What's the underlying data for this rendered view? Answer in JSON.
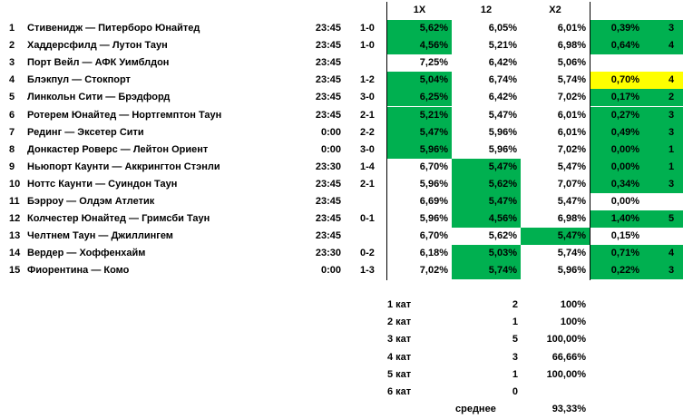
{
  "headers": {
    "h1x": "1X",
    "h12": "12",
    "hx2": "X2"
  },
  "colors": {
    "green": "#00b050",
    "yellow": "#ffff00"
  },
  "rows": [
    {
      "n": "1",
      "match": "Стивенидж — Питерборо Юнайтед",
      "time": "23:45",
      "score": "1-0",
      "c1x": "5,62%",
      "c12": "6,05%",
      "cx2": "6,01%",
      "pct": "0,39%",
      "cat": "3",
      "hl": "1x",
      "pctColor": "green"
    },
    {
      "n": "2",
      "match": "Хаддерсфилд — Лутон Таун",
      "time": "23:45",
      "score": "1-0",
      "c1x": "4,56%",
      "c12": "5,21%",
      "cx2": "6,98%",
      "pct": "0,64%",
      "cat": "4",
      "hl": "1x",
      "pctColor": "green"
    },
    {
      "n": "3",
      "match": "Порт Вейл — АФК Уимблдон",
      "time": "23:45",
      "score": "",
      "c1x": "7,25%",
      "c12": "6,42%",
      "cx2": "5,06%",
      "pct": "",
      "cat": "",
      "hl": "",
      "pctColor": ""
    },
    {
      "n": "4",
      "match": "Блэкпул — Стокпорт",
      "time": "23:45",
      "score": "1-2",
      "c1x": "5,04%",
      "c12": "6,74%",
      "cx2": "5,74%",
      "pct": "0,70%",
      "cat": "4",
      "hl": "1x",
      "pctColor": "yellow"
    },
    {
      "n": "5",
      "match": "Линкольн Сити — Брэдфорд",
      "time": "23:45",
      "score": "3-0",
      "c1x": "6,25%",
      "c12": "6,42%",
      "cx2": "7,02%",
      "pct": "0,17%",
      "cat": "2",
      "hl": "1x",
      "pctColor": "green"
    },
    {
      "n": "6",
      "match": "Ротерем Юнайтед — Нортгемптон Таун",
      "time": "23:45",
      "score": "2-1",
      "c1x": "5,21%",
      "c12": "5,47%",
      "cx2": "6,01%",
      "pct": "0,27%",
      "cat": "3",
      "hl": "1x",
      "pctColor": "green"
    },
    {
      "n": "7",
      "match": "Рединг — Эксетер Сити",
      "time": "0:00",
      "score": "2-2",
      "c1x": "5,47%",
      "c12": "5,96%",
      "cx2": "6,01%",
      "pct": "0,49%",
      "cat": "3",
      "hl": "1x",
      "pctColor": "green"
    },
    {
      "n": "8",
      "match": "Донкастер Роверс — Лейтон Ориент",
      "time": "0:00",
      "score": "3-0",
      "c1x": "5,96%",
      "c12": "5,96%",
      "cx2": "7,02%",
      "pct": "0,00%",
      "cat": "1",
      "hl": "1x",
      "pctColor": "green"
    },
    {
      "n": "9",
      "match": "Ньюпорт Каунти — Аккрингтон Стэнли",
      "time": "23:30",
      "score": "1-4",
      "c1x": "6,70%",
      "c12": "5,47%",
      "cx2": "5,47%",
      "pct": "0,00%",
      "cat": "1",
      "hl": "12",
      "pctColor": "green"
    },
    {
      "n": "10",
      "match": "Ноттс Каунти — Суиндон Таун",
      "time": "23:45",
      "score": "2-1",
      "c1x": "5,96%",
      "c12": "5,62%",
      "cx2": "7,07%",
      "pct": "0,34%",
      "cat": "3",
      "hl": "12",
      "pctColor": "green"
    },
    {
      "n": "11",
      "match": "Бэрроу — Олдэм Атлетик",
      "time": "23:45",
      "score": "",
      "c1x": "6,69%",
      "c12": "5,47%",
      "cx2": "5,47%",
      "pct": "0,00%",
      "cat": "",
      "hl": "12",
      "pctColor": ""
    },
    {
      "n": "12",
      "match": "Колчестер Юнайтед — Гримсби Таун",
      "time": "23:45",
      "score": "0-1",
      "c1x": "5,96%",
      "c12": "4,56%",
      "cx2": "6,98%",
      "pct": "1,40%",
      "cat": "5",
      "hl": "12",
      "pctColor": "green"
    },
    {
      "n": "13",
      "match": "Челтнем Таун — Джиллингем",
      "time": "23:45",
      "score": "",
      "c1x": "6,70%",
      "c12": "5,62%",
      "cx2": "5,47%",
      "pct": "0,15%",
      "cat": "",
      "hl": "x2",
      "pctColor": ""
    },
    {
      "n": "14",
      "match": "Вердер — Хоффенхайм",
      "time": "23:30",
      "score": "0-2",
      "c1x": "6,18%",
      "c12": "5,03%",
      "cx2": "5,74%",
      "pct": "0,71%",
      "cat": "4",
      "hl": "12",
      "pctColor": "green"
    },
    {
      "n": "15",
      "match": "Фиорентина — Комо",
      "time": "0:00",
      "score": "1-3",
      "c1x": "7,02%",
      "c12": "5,74%",
      "cx2": "5,96%",
      "pct": "0,22%",
      "cat": "3",
      "hl": "12",
      "pctColor": "green"
    }
  ],
  "summary": [
    {
      "label": "1 кат",
      "count": "2",
      "pct": "100%"
    },
    {
      "label": "2 кат",
      "count": "1",
      "pct": "100%"
    },
    {
      "label": "3 кат",
      "count": "5",
      "pct": "100,00%"
    },
    {
      "label": "4 кат",
      "count": "3",
      "pct": "66,66%"
    },
    {
      "label": "5 кат",
      "count": "1",
      "pct": "100,00%"
    },
    {
      "label": "6 кат",
      "count": "0",
      "pct": ""
    }
  ],
  "average": {
    "label": "среднее",
    "value": "93,33%"
  }
}
